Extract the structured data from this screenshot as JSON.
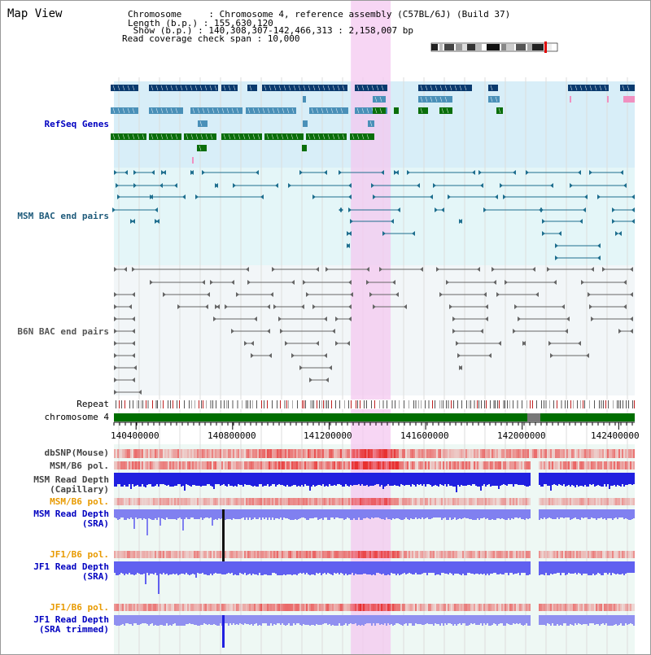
{
  "view_title": "Map View",
  "info": {
    "chromosome_line": "Chromosome     : Chromosome 4, reference assembly (C57BL/6J) (Build 37)",
    "length_line": "Length (b.p.) : 155,630,120",
    "show_line": " Show (b.p.) : 140,308,307-142,466,313 : 2,158,007 bp",
    "coverage_line": "Read coverage check span : 10,000"
  },
  "tracks": {
    "refseq": "RefSeq Genes",
    "msm_bac": "MSM BAC end pairs",
    "b6n_bac": "B6N BAC end pairs",
    "repeat": "Repeat",
    "chromosome": "chromosome 4",
    "dbsnp": "dbSNP(Mouse)",
    "msm_b6_pol_1": "MSM/B6 pol.",
    "msm_depth_cap_1": "MSM Read Depth",
    "msm_depth_cap_2": "(Capillary)",
    "msm_b6_pol_2": "MSM/B6 pol.",
    "msm_depth_sra_1": "MSM Read Depth",
    "msm_depth_sra_2": "(SRA)",
    "jf1_b6_pol_1": "JF1/B6 pol.",
    "jf1_depth_sra_1": "JF1 Read Depth",
    "jf1_depth_sra_2": "(SRA)",
    "jf1_b6_pol_2": "JF1/B6 pol.",
    "jf1_depth_trim_1": "JF1 Read Depth",
    "jf1_depth_trim_2": "(SRA trimmed)"
  },
  "axis": {
    "ticks": [
      {
        "label": "140400000",
        "value": 140400000
      },
      {
        "label": "140800000",
        "value": 140800000
      },
      {
        "label": "141200000",
        "value": 141200000
      },
      {
        "label": "141600000",
        "value": 141600000
      },
      {
        "label": "142000000",
        "value": 142000000
      },
      {
        "label": "142400000",
        "value": 142400000
      }
    ],
    "range_start": 140308307,
    "range_end": 142466313,
    "highlight_start": 141290000,
    "highlight_end": 141455000
  },
  "colors": {
    "refseq_dark": "#0a3a6e",
    "refseq_mid": "#4a90b8",
    "refseq_green": "#0a6e0a",
    "highlight": "#f4c8f0",
    "msm_bac": "#1e6e8e",
    "b6n_bac": "#666666",
    "snp_red": "#e83030",
    "depth_blue": "#2020e0",
    "depth_light": "#8080f0"
  }
}
